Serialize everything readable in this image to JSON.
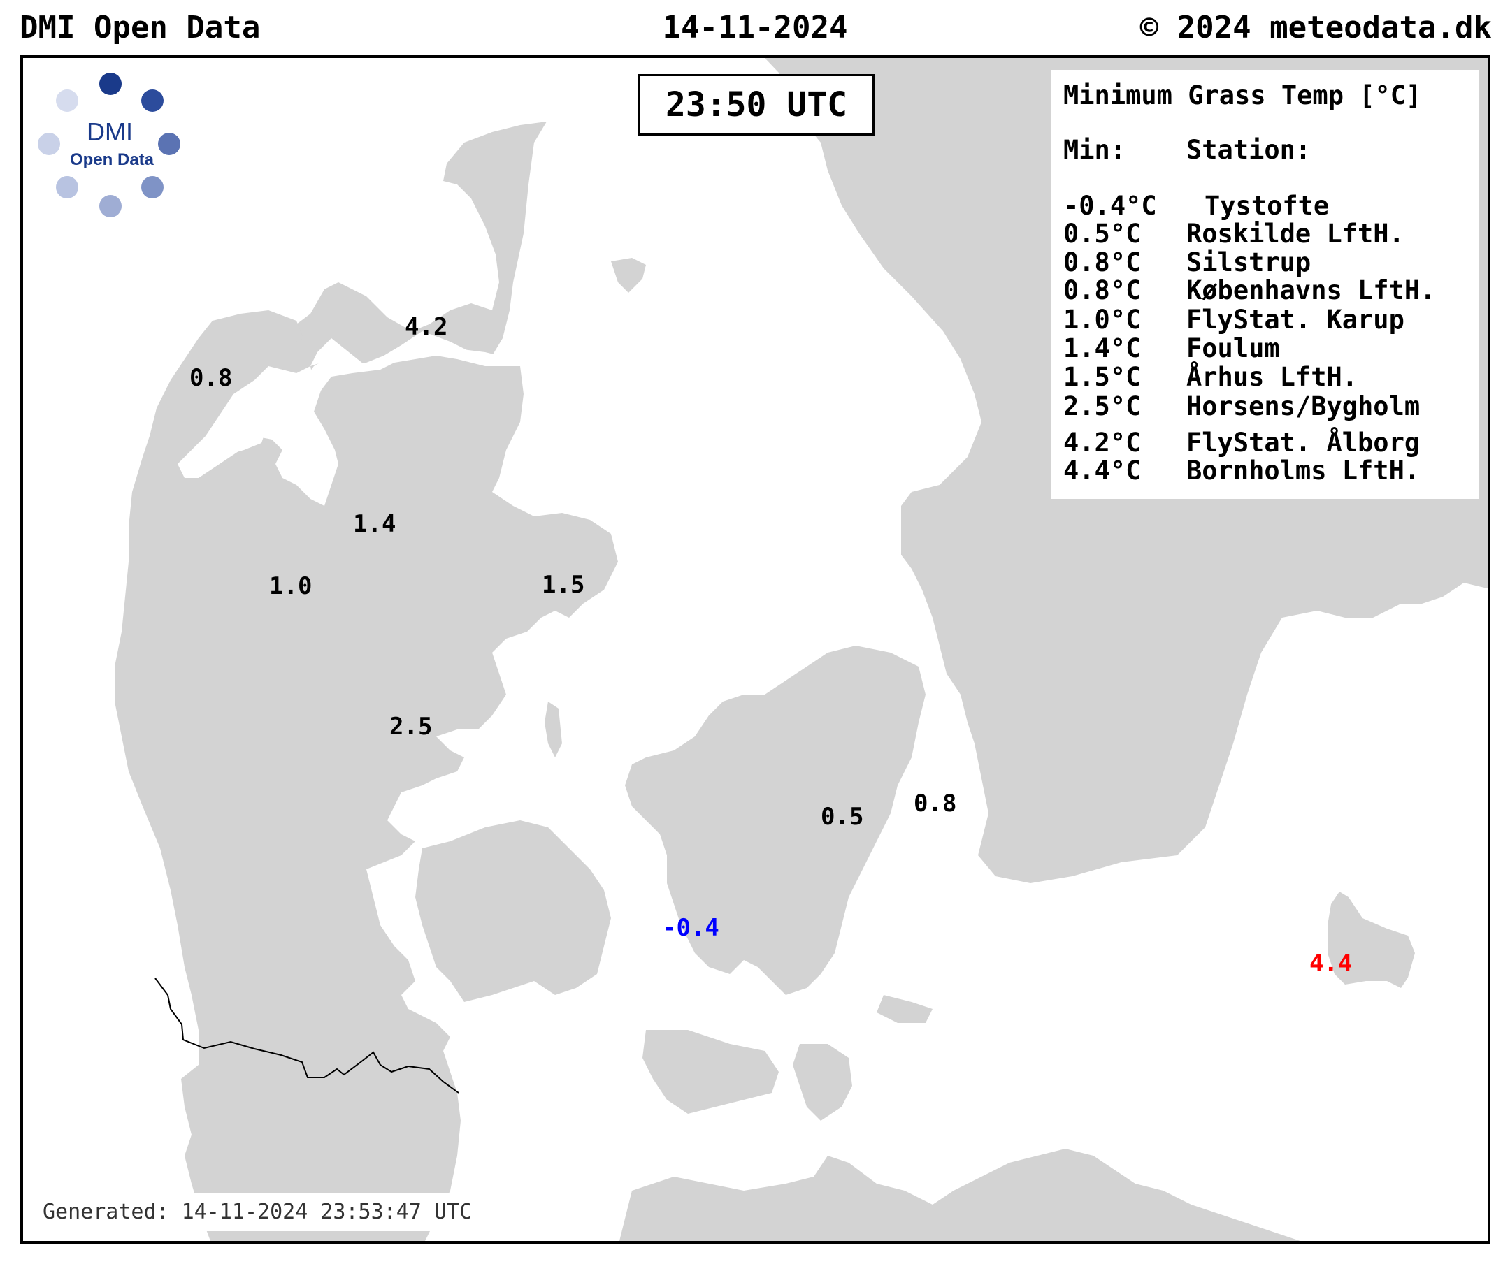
{
  "header": {
    "left": "DMI Open Data",
    "center": "14-11-2024",
    "right": "© 2024 meteodata.dk"
  },
  "time_box": "23:50 UTC",
  "logo": {
    "line1": "DMI",
    "line2": "Open Data",
    "colors": [
      "#1a3a8a",
      "#2c4c9c",
      "#5b73b3",
      "#7f93c6",
      "#9fadd4",
      "#b8c3e1",
      "#c9d1e8",
      "#d6dcee"
    ]
  },
  "legend": {
    "title": "Minimum Grass Temp [°C]",
    "col_min": "Min:",
    "col_station": "Station:",
    "rows": [
      {
        "value": "-0.4°C",
        "station": "Tystofte"
      },
      {
        "value": "0.5°C",
        "station": "Roskilde LftH."
      },
      {
        "value": "0.8°C",
        "station": "Silstrup"
      },
      {
        "value": "0.8°C",
        "station": "Københavns LftH."
      },
      {
        "value": "1.0°C",
        "station": "FlyStat. Karup"
      },
      {
        "value": "1.4°C",
        "station": "Foulum"
      },
      {
        "value": "1.5°C",
        "station": "Århus LftH."
      },
      {
        "value": "2.5°C",
        "station": "Horsens/Bygholm"
      },
      {
        "value": "4.2°C",
        "station": "FlyStat. Ålborg"
      },
      {
        "value": "4.4°C",
        "station": "Bornholms LftH."
      }
    ]
  },
  "stations": [
    {
      "label": "4.2",
      "color": "#000000"
    },
    {
      "label": "0.8",
      "color": "#000000"
    },
    {
      "label": "1.4",
      "color": "#000000"
    },
    {
      "label": "1.0",
      "color": "#000000"
    },
    {
      "label": "1.5",
      "color": "#000000"
    },
    {
      "label": "2.5",
      "color": "#000000"
    },
    {
      "label": "0.5",
      "color": "#000000"
    },
    {
      "label": "0.8",
      "color": "#000000"
    },
    {
      "label": "-0.4",
      "color": "#0000ff"
    },
    {
      "label": "4.4",
      "color": "#ff0000"
    }
  ],
  "colors": {
    "land": "#d3d3d3",
    "sea": "#ffffff",
    "border": "#000000"
  },
  "generated": "Generated: 14-11-2024 23:53:47 UTC"
}
